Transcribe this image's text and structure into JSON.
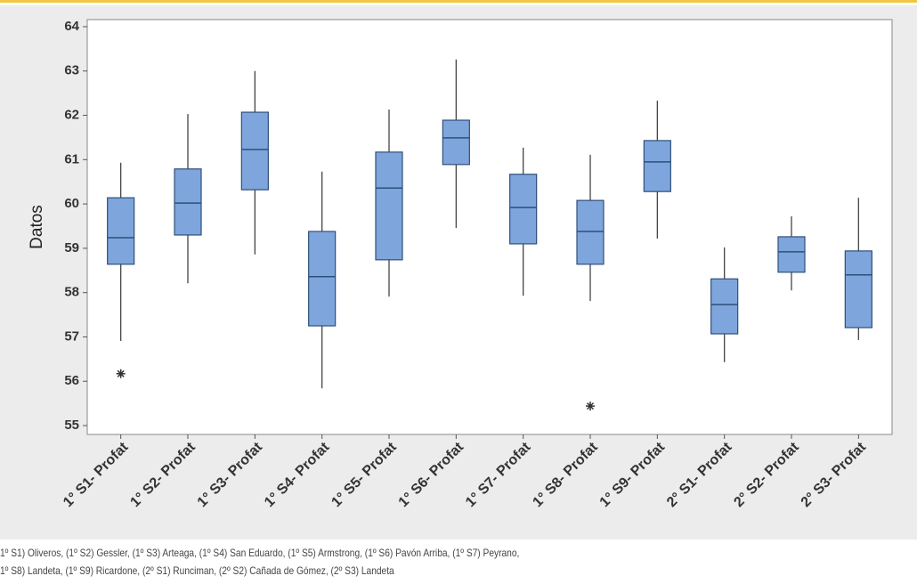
{
  "chart_data": {
    "type": "box",
    "y_label": "Datos",
    "categories": [
      "1° S1- Profat",
      "1° S2- Profat",
      "1° S3- Profat",
      "1° S4- Profat",
      "1° S5- Profat",
      "1° S6- Profat",
      "1° S7- Profat",
      "1° S8- Profat",
      "1° S9- Profat",
      "2° S1- Profat",
      "2° S2- Profat",
      "2° S3- Profat"
    ],
    "whisker_low": [
      56.91,
      58.21,
      58.86,
      55.84,
      57.91,
      59.46,
      57.93,
      57.81,
      59.22,
      56.43,
      58.05,
      56.93
    ],
    "q1": [
      58.64,
      59.3,
      60.32,
      57.25,
      58.74,
      60.89,
      59.1,
      58.64,
      60.28,
      57.07,
      58.46,
      57.21
    ],
    "median": [
      59.24,
      60.02,
      61.23,
      58.36,
      60.36,
      61.49,
      59.92,
      59.38,
      60.95,
      57.73,
      58.92,
      58.4
    ],
    "q3": [
      60.14,
      60.79,
      62.07,
      59.38,
      61.17,
      61.89,
      60.67,
      60.08,
      61.43,
      58.31,
      59.26,
      58.94
    ],
    "whisker_high": [
      60.93,
      62.03,
      63.0,
      60.73,
      62.13,
      63.26,
      61.27,
      61.11,
      62.33,
      59.02,
      59.72,
      60.14
    ],
    "outliers": [
      [
        56.17
      ],
      [],
      [],
      [],
      [],
      [],
      [],
      [
        55.44
      ],
      [],
      [],
      [],
      []
    ],
    "color": "#7ea6dc",
    "ylim": [
      54.8,
      64.16
    ],
    "yticks": [
      55,
      56,
      57,
      58,
      59,
      60,
      61,
      62,
      63,
      64
    ],
    "grid": false
  },
  "caption": [
    "1º S1) Oliveros, (1º S2) Gessler, (1º S3) Arteaga, (1º S4) San Eduardo, (1º S5) Armstrong, (1º S6) Pavón Arriba, (1º S7) Peyrano,",
    "1º S8) Landeta, (1º S9) Ricardone, (2º S1) Runciman, (2º S2) Cañada de Gómez, (2º S3) Landeta"
  ]
}
